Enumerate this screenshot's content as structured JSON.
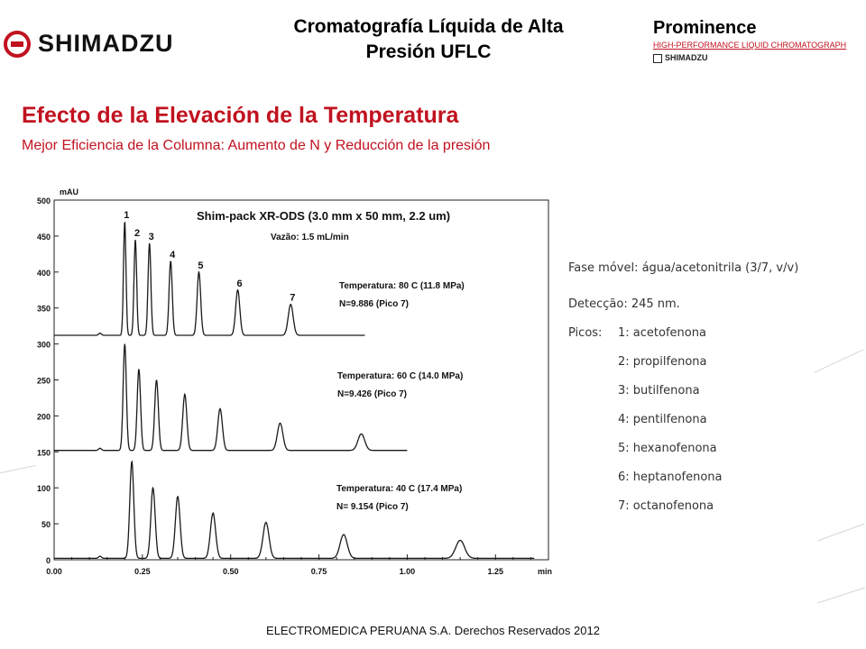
{
  "header": {
    "logo_text": "SHIMADZU",
    "title_line1": "Cromatografía Líquida de Alta",
    "title_line2": "Presión UFLC",
    "brand_name": "Prominence",
    "brand_sub": "HIGH-PERFORMANCE LIQUID CHROMATOGRAPH",
    "brand_logo": "SHIMADZU"
  },
  "section": {
    "title": "Efecto de la Elevación de la Temperatura",
    "subtitle": "Mejor Eficiencia de la Columna: Aumento de N y Reducción de la presión"
  },
  "conditions": {
    "mobile_phase": "Fase móvel: água/acetonitrila (3/7, v/v)",
    "detection": "Detecção: 245 nm.",
    "peaks_label": "Picos:",
    "peaks": [
      "1: acetofenona",
      "2: propilfenona",
      "3: butilfenona",
      "4: pentilfenona",
      "5: hexanofenona",
      "6: heptanofenona",
      "7: octanofenona"
    ]
  },
  "footer": "ELECTROMEDICA PERUANA S.A.   Derechos Reservados   2012",
  "chart_data": {
    "type": "line",
    "title": "Shim-pack XR-ODS (3.0 mm x 50 mm, 2.2 um)",
    "subtitle": "Vazão: 1.5 mL/min",
    "xlabel": "min",
    "ylabel": "mAU",
    "xlim": [
      0.0,
      1.4
    ],
    "ylim": [
      0,
      500
    ],
    "x_ticks": [
      "0.00",
      "0.25",
      "0.50",
      "0.75",
      "1.00",
      "1.25"
    ],
    "y_ticks": [
      "0",
      "50",
      "100",
      "150",
      "200",
      "250",
      "300",
      "350",
      "400",
      "450",
      "500"
    ],
    "peak_numbers": [
      "1",
      "2",
      "3",
      "4",
      "5",
      "6",
      "7"
    ],
    "series": [
      {
        "label_temp": "Temperatura: 80 C (11.8 MPa)",
        "label_n": "N=9.886 (Pico 7)",
        "baseline": 312,
        "x_end": 0.88,
        "peaks": [
          {
            "rt": 0.2,
            "height": 470
          },
          {
            "rt": 0.23,
            "height": 445
          },
          {
            "rt": 0.27,
            "height": 440
          },
          {
            "rt": 0.33,
            "height": 415
          },
          {
            "rt": 0.41,
            "height": 400
          },
          {
            "rt": 0.52,
            "height": 375
          },
          {
            "rt": 0.67,
            "height": 355
          }
        ]
      },
      {
        "label_temp": "Temperatura: 60 C (14.0 MPa)",
        "label_n": "N=9.426 (Pico 7)",
        "baseline": 152,
        "x_end": 1.0,
        "peaks": [
          {
            "rt": 0.2,
            "height": 300
          },
          {
            "rt": 0.24,
            "height": 265
          },
          {
            "rt": 0.29,
            "height": 250
          },
          {
            "rt": 0.37,
            "height": 230
          },
          {
            "rt": 0.47,
            "height": 210
          },
          {
            "rt": 0.64,
            "height": 190
          },
          {
            "rt": 0.87,
            "height": 175
          }
        ]
      },
      {
        "label_temp": "Temperatura: 40 C (17.4 MPa)",
        "label_n": "N= 9.154 (Pico 7)",
        "baseline": 2,
        "x_end": 1.36,
        "peaks": [
          {
            "rt": 0.22,
            "height": 137
          },
          {
            "rt": 0.28,
            "height": 100
          },
          {
            "rt": 0.35,
            "height": 88
          },
          {
            "rt": 0.45,
            "height": 65
          },
          {
            "rt": 0.6,
            "height": 52
          },
          {
            "rt": 0.82,
            "height": 35
          },
          {
            "rt": 1.15,
            "height": 27
          }
        ]
      }
    ]
  }
}
